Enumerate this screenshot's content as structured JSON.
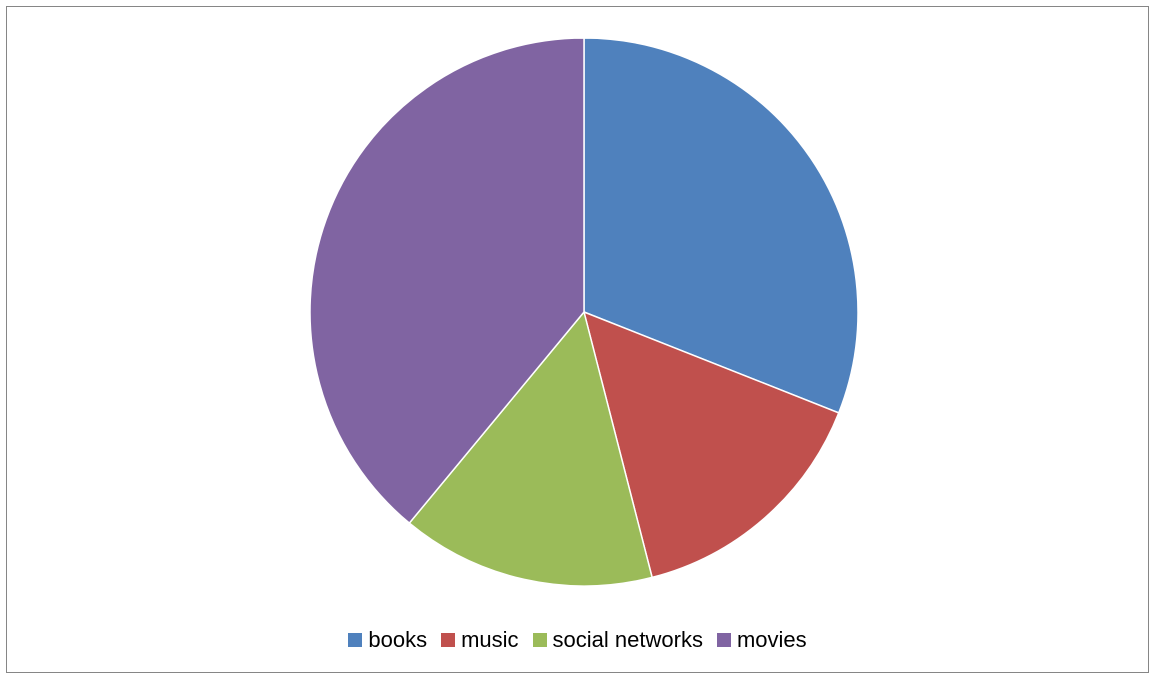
{
  "chart_data": {
    "type": "pie",
    "title": "",
    "legend_position": "bottom",
    "slices": [
      {
        "label": "books",
        "value": 31,
        "color": "#4F81BD"
      },
      {
        "label": "music",
        "value": 15,
        "color": "#C0504D"
      },
      {
        "label": "social networks",
        "value": 15,
        "color": "#9BBB59"
      },
      {
        "label": "movies",
        "value": 39,
        "color": "#8064A2"
      }
    ]
  }
}
